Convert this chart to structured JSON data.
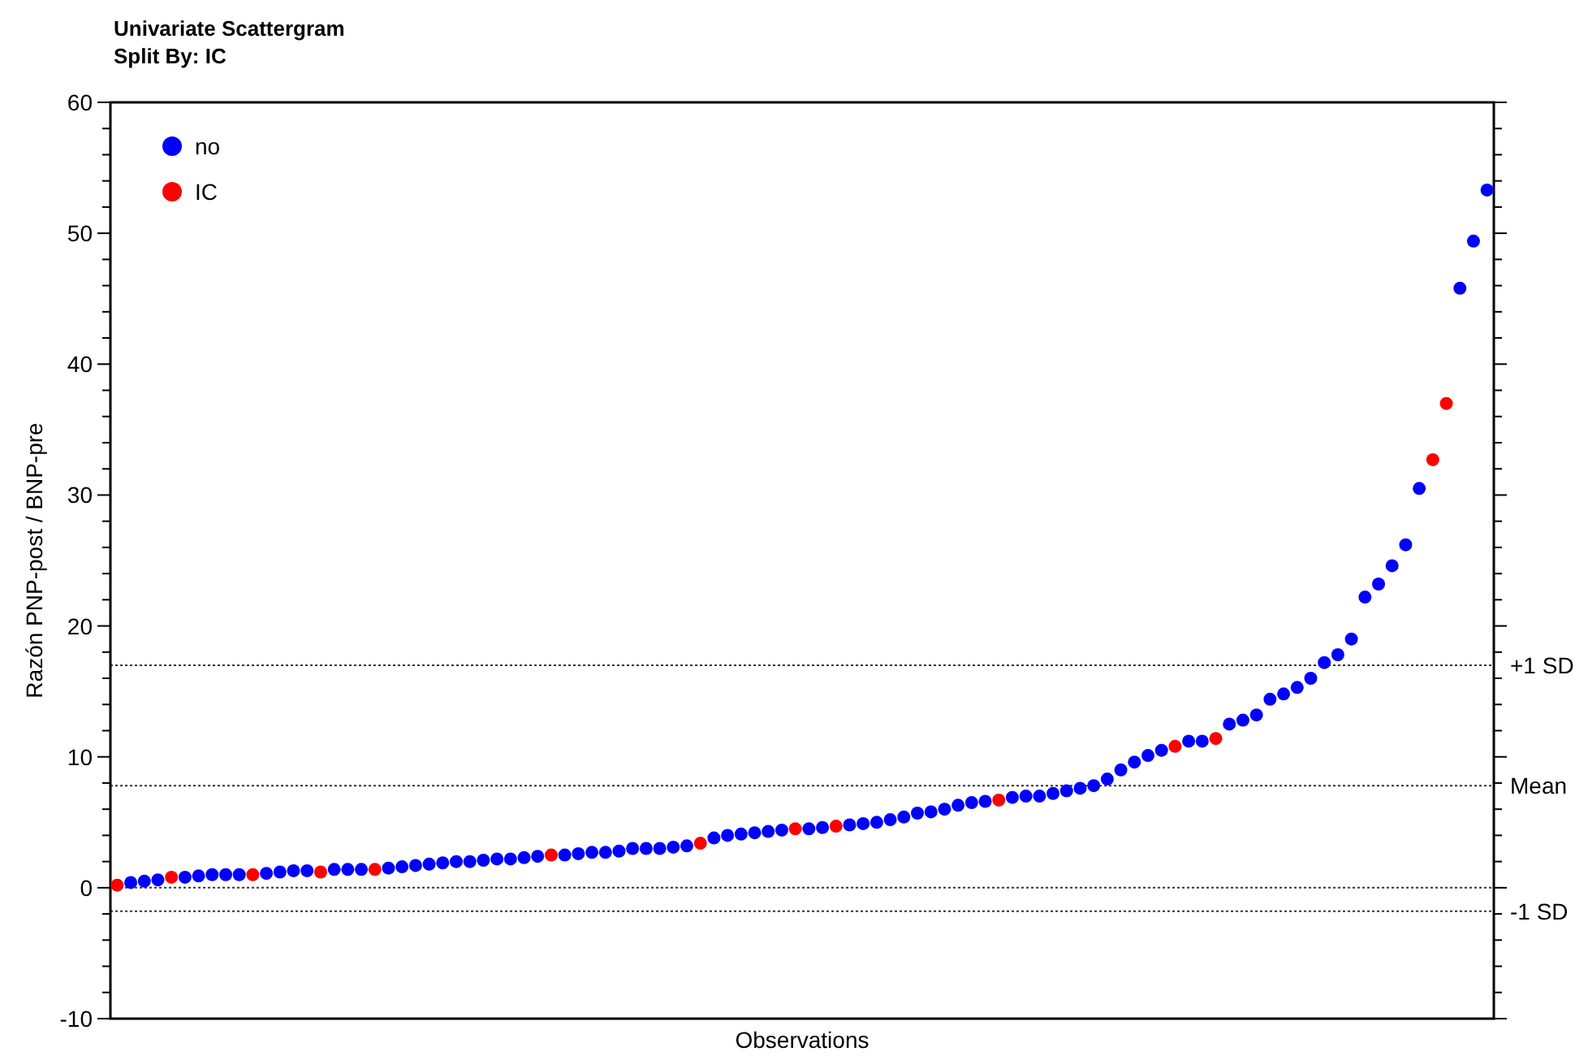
{
  "chart_data": {
    "type": "scatter",
    "title": "Univariate Scattergram",
    "subtitle": "Split By: IC",
    "xlabel": "Observations",
    "ylabel": "Razón PNP-post / BNP-pre",
    "categories": [
      null,
      null,
      null,
      null,
      null,
      null,
      null,
      null,
      null,
      null,
      null,
      null,
      null,
      null,
      null,
      null,
      null,
      null,
      null,
      null,
      null,
      null,
      null,
      null,
      null,
      null,
      null,
      null,
      null,
      null,
      null,
      null,
      null,
      null,
      null,
      null,
      null,
      null,
      null,
      null,
      null,
      null,
      null,
      null,
      null,
      null,
      null,
      null,
      null,
      null,
      null,
      null,
      null,
      null,
      null,
      null,
      null,
      null,
      null,
      null,
      null,
      null,
      null,
      null,
      null,
      null,
      null,
      null,
      null,
      null,
      null,
      null,
      null,
      null,
      null,
      null,
      null,
      null,
      null,
      null,
      null,
      null,
      null,
      null,
      null,
      null,
      null,
      null,
      null,
      null,
      null,
      null,
      null,
      null,
      null,
      null,
      null,
      null,
      null,
      null,
      null,
      null
    ],
    "series": [
      {
        "name": "no",
        "color": "#0000ff",
        "values": [
          null,
          0.4,
          0.5,
          0.6,
          null,
          0.8,
          0.9,
          1.0,
          1.0,
          1.0,
          null,
          1.1,
          1.2,
          1.3,
          1.3,
          null,
          1.4,
          1.4,
          1.4,
          null,
          1.5,
          1.6,
          1.7,
          1.8,
          1.9,
          2.0,
          2.0,
          2.1,
          2.2,
          2.2,
          2.3,
          2.4,
          null,
          2.5,
          2.6,
          2.7,
          2.7,
          2.8,
          3.0,
          3.0,
          3.0,
          3.1,
          3.2,
          null,
          3.8,
          4.0,
          4.1,
          4.2,
          4.3,
          4.4,
          null,
          4.5,
          4.6,
          null,
          4.8,
          4.9,
          5.0,
          5.2,
          5.4,
          5.7,
          5.8,
          6.0,
          6.3,
          6.5,
          6.6,
          null,
          6.9,
          7.0,
          7.0,
          7.2,
          7.4,
          7.6,
          7.8,
          8.3,
          9.0,
          9.6,
          10.1,
          10.5,
          null,
          11.2,
          11.2,
          null,
          12.5,
          12.8,
          13.2,
          14.4,
          14.8,
          15.3,
          16.0,
          17.2,
          17.8,
          19.0,
          22.2,
          23.2,
          24.6,
          26.2,
          30.5,
          null,
          null,
          45.8,
          49.4,
          53.3
        ]
      },
      {
        "name": "IC",
        "color": "#ff0000",
        "values": [
          0.2,
          null,
          null,
          null,
          0.8,
          null,
          null,
          null,
          null,
          null,
          1.0,
          null,
          null,
          null,
          null,
          1.2,
          null,
          null,
          null,
          1.4,
          null,
          null,
          null,
          null,
          null,
          null,
          null,
          null,
          null,
          null,
          null,
          null,
          2.5,
          null,
          null,
          null,
          null,
          null,
          null,
          null,
          null,
          null,
          null,
          3.4,
          null,
          null,
          null,
          null,
          null,
          null,
          4.5,
          null,
          null,
          4.7,
          null,
          null,
          null,
          null,
          null,
          null,
          null,
          null,
          null,
          null,
          null,
          6.7,
          null,
          null,
          null,
          null,
          null,
          null,
          null,
          null,
          null,
          null,
          null,
          null,
          10.8,
          null,
          null,
          11.4,
          null,
          null,
          null,
          null,
          null,
          null,
          null,
          null,
          null,
          null,
          null,
          null,
          null,
          null,
          null,
          32.7,
          37.0,
          null,
          null,
          null
        ]
      }
    ],
    "ylim": [
      -10,
      60
    ],
    "yticks": [
      -10,
      {
        "value": -8,
        "label": null
      },
      {
        "value": -6,
        "label": null
      },
      {
        "value": -4,
        "label": null
      },
      {
        "value": -2,
        "label": null
      },
      0,
      {
        "value": 2,
        "label": null
      },
      {
        "value": 4,
        "label": null
      },
      {
        "value": 6,
        "label": null
      },
      {
        "value": 8,
        "label": null
      },
      10,
      {
        "value": 12,
        "label": null
      },
      {
        "value": 14,
        "label": null
      },
      {
        "value": 16,
        "label": null
      },
      {
        "value": 18,
        "label": null
      },
      20,
      {
        "value": 22,
        "label": null
      },
      {
        "value": 24,
        "label": null
      },
      {
        "value": 26,
        "label": null
      },
      {
        "value": 28,
        "label": null
      },
      30,
      {
        "value": 32,
        "label": null
      },
      {
        "value": 34,
        "label": null
      },
      {
        "value": 36,
        "label": null
      },
      {
        "value": 38,
        "label": null
      },
      40,
      {
        "value": 42,
        "label": null
      },
      {
        "value": 44,
        "label": null
      },
      {
        "value": 46,
        "label": null
      },
      {
        "value": 48,
        "label": null
      },
      50,
      {
        "value": 52,
        "label": null
      },
      {
        "value": 54,
        "label": null
      },
      {
        "value": 56,
        "label": null
      },
      {
        "value": 58,
        "label": null
      },
      60
    ],
    "ref_lines": [
      {
        "axis": "y",
        "value": 17.0,
        "label": "+1 SD",
        "line_style": "dotted"
      },
      {
        "axis": "y",
        "value": 7.8,
        "label": "Mean",
        "line_style": "dotted"
      },
      {
        "axis": "y",
        "value": 0,
        "line_style": "dotted"
      },
      {
        "axis": "y",
        "value": -1.8,
        "label": "-1 SD",
        "line_style": "dotted"
      }
    ],
    "legend": "top left",
    "marker": "circle",
    "grid": false
  }
}
